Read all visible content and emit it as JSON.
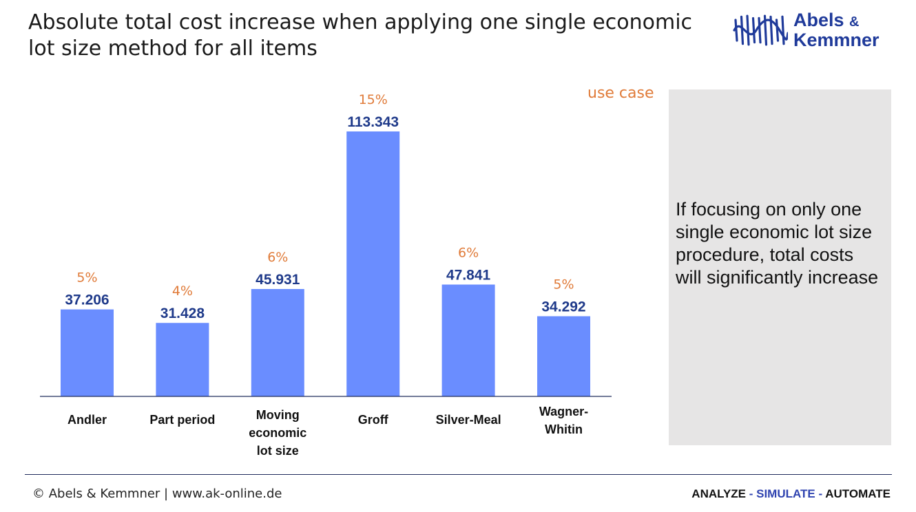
{
  "title": "Absolute total cost increase when applying one single economic lot size method for all items",
  "logo": {
    "line1": "Abels",
    "amp": "&",
    "line2": "Kemmner",
    "icon": "sine-wave-bars-logo-icon"
  },
  "use_case_label": "use case",
  "box_text": "If focusing on only one single economic lot size procedure, total costs will significantly increase",
  "footer": {
    "left": "© Abels & Kemmner | www.ak-online.de",
    "right_1": "ANALYZE",
    "sep": " - ",
    "right_2": "SIMULATE",
    "right_3": "AUTOMATE"
  },
  "colors": {
    "bar": "#6a8dff",
    "value": "#1f3a8a",
    "percent": "#e07b39",
    "logo": "#1f3a9a"
  },
  "chart_data": {
    "type": "bar",
    "title": "",
    "xlabel": "",
    "ylabel": "",
    "ylim": [
      0,
      120000
    ],
    "grid": false,
    "categories": [
      [
        "Andler"
      ],
      [
        "Part period"
      ],
      [
        "Moving",
        "economic",
        "lot size"
      ],
      [
        "Groff"
      ],
      [
        "Silver-Meal"
      ],
      [
        "Wagner-",
        "Whitin"
      ]
    ],
    "values": [
      37206,
      31428,
      45931,
      113343,
      47841,
      34292
    ],
    "value_labels": [
      "37.206",
      "31.428",
      "45.931",
      "113.343",
      "47.841",
      "34.292"
    ],
    "percent_labels": [
      "5%",
      "4%",
      "6%",
      "15%",
      "6%",
      "5%"
    ]
  }
}
